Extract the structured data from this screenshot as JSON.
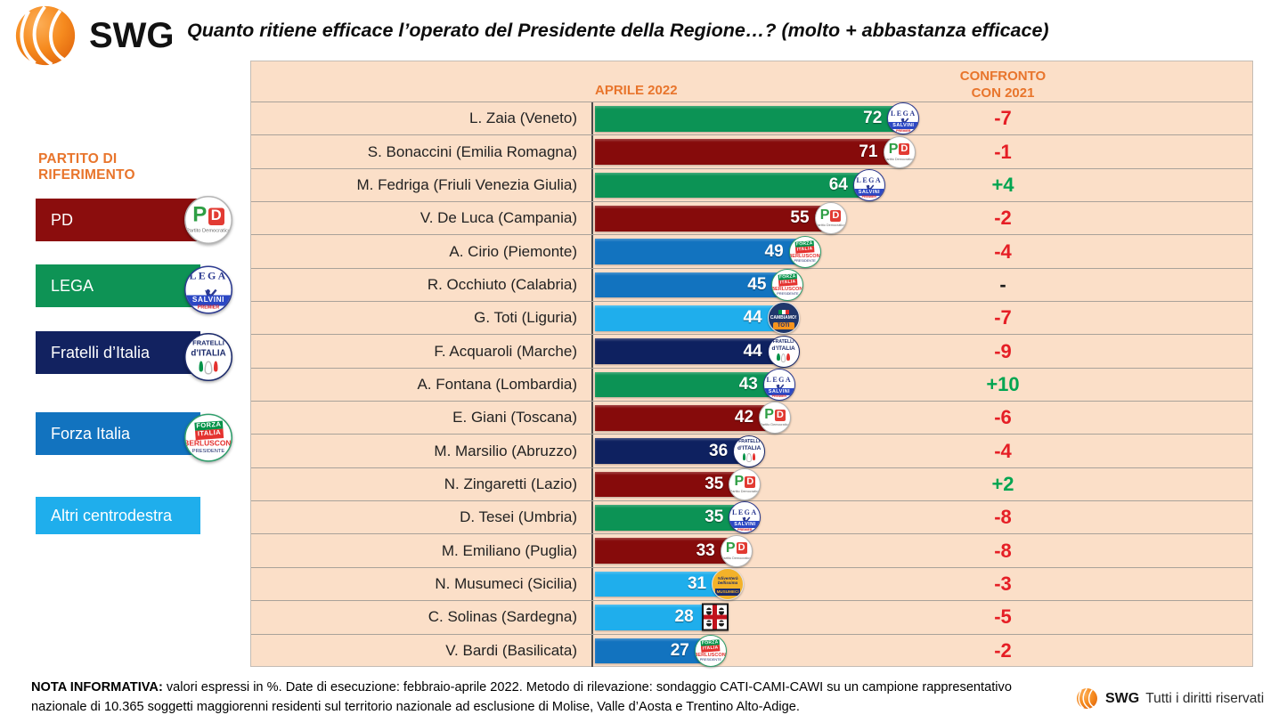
{
  "header": {
    "logo_text": "SWG",
    "title": "Quanto ritiene efficace l’operato del Presidente della Regione…? (molto + abbastanza efficace)"
  },
  "legend": {
    "title": "PARTITO DI RIFERIMENTO",
    "items": [
      {
        "key": "pd",
        "label": "PD",
        "color": "#8B0D0D",
        "logo": "pd"
      },
      {
        "key": "lega",
        "label": "LEGA",
        "color": "#0E9355",
        "logo": "lega"
      },
      {
        "key": "fdi",
        "label": "Fratelli d’Italia",
        "color": "#122260",
        "logo": "fdi"
      },
      {
        "key": "fi",
        "label": "Forza Italia",
        "color": "#1273BF",
        "logo": "fi"
      },
      {
        "key": "altri",
        "label": "Altri centrodestra",
        "color": "#1FAEEC",
        "logo": null,
        "small": true
      }
    ]
  },
  "chart_data": {
    "type": "bar",
    "orientation": "horizontal",
    "title": "Quanto ritiene efficace l’operato del Presidente della Regione…? (molto + abbastanza efficace)",
    "value_header": "APRILE 2022",
    "delta_header": "CONFRONTO\nCON 2021",
    "unit": "%",
    "xlim": [
      0,
      100
    ],
    "rows": [
      {
        "name": "L. Zaia (Veneto)",
        "party": "lega",
        "value": 72,
        "delta": "-7",
        "trend": "neg"
      },
      {
        "name": "S. Bonaccini (Emilia Romagna)",
        "party": "pd",
        "value": 71,
        "delta": "-1",
        "trend": "neg"
      },
      {
        "name": "M. Fedriga (Friuli Venezia Giulia)",
        "party": "lega",
        "value": 64,
        "delta": "+4",
        "trend": "pos"
      },
      {
        "name": "V. De Luca (Campania)",
        "party": "pd",
        "value": 55,
        "delta": "-2",
        "trend": "neg"
      },
      {
        "name": "A. Cirio (Piemonte)",
        "party": "fi",
        "value": 49,
        "delta": "-4",
        "trend": "neg"
      },
      {
        "name": "R. Occhiuto (Calabria)",
        "party": "fi",
        "value": 45,
        "delta": "-",
        "trend": "none"
      },
      {
        "name": "G. Toti (Liguria)",
        "party": "cambiamo",
        "value": 44,
        "delta": "-7",
        "trend": "neg"
      },
      {
        "name": "F. Acquaroli (Marche)",
        "party": "fdi",
        "value": 44,
        "delta": "-9",
        "trend": "neg"
      },
      {
        "name": "A. Fontana (Lombardia)",
        "party": "lega",
        "value": 43,
        "delta": "+10",
        "trend": "pos"
      },
      {
        "name": "E. Giani (Toscana)",
        "party": "pd",
        "value": 42,
        "delta": "-6",
        "trend": "neg"
      },
      {
        "name": "M. Marsilio (Abruzzo)",
        "party": "fdi",
        "value": 36,
        "delta": "-4",
        "trend": "neg"
      },
      {
        "name": "N. Zingaretti (Lazio)",
        "party": "pd",
        "value": 35,
        "delta": "+2",
        "trend": "pos"
      },
      {
        "name": "D. Tesei (Umbria)",
        "party": "lega",
        "value": 35,
        "delta": "-8",
        "trend": "neg"
      },
      {
        "name": "M. Emiliano (Puglia)",
        "party": "pd",
        "value": 33,
        "delta": "-8",
        "trend": "neg"
      },
      {
        "name": "N. Musumeci (Sicilia)",
        "party": "musumeci",
        "value": 31,
        "delta": "-3",
        "trend": "neg"
      },
      {
        "name": "C. Solinas (Sardegna)",
        "party": "sardegna",
        "value": 28,
        "delta": "-5",
        "trend": "neg"
      },
      {
        "name": "V. Bardi (Basilicata)",
        "party": "fi",
        "value": 27,
        "delta": "-2",
        "trend": "neg"
      }
    ],
    "party_colors": {
      "pd": "#860B0B",
      "lega": "#0C9355",
      "fdi": "#0E2160",
      "fi": "#1273BF",
      "cambiamo": "#1FAEEC",
      "musumeci": "#1FAEEC",
      "sardegna": "#1FAEEC"
    },
    "delta_colors": {
      "neg": "#E51E25",
      "pos": "#00A551",
      "none": "#1A1A1A"
    }
  },
  "party_logos": {
    "lega": {
      "top": "LEGA",
      "band": "SALVINI",
      "sub": "PREMIER"
    },
    "pd": {
      "p": "P",
      "d": "D",
      "sub": "Partito Democratico"
    },
    "fdi": {
      "line1": "FRATELLI",
      "line2": "d’ITALIA"
    },
    "fi": {
      "line1": "FORZA",
      "line2": "ITALIA",
      "band": "BERLUSCONI",
      "sub": "PRESIDENTE"
    },
    "cambiamo": {
      "line1": "CAMBIAMO!",
      "band": "TOTI"
    },
    "musumeci": {
      "line1": "#diventerà",
      "line2": "bellissima",
      "band": "MUSUMECI"
    },
    "sardegna": {
      "name": "bandiera dei quattro mori"
    }
  },
  "footer": {
    "note_bold": "NOTA INFORMATIVA:",
    "note_text": " valori espressi in %. Date di esecuzione: febbraio-aprile 2022. Metodo di rilevazione: sondaggio CATI-CAMI-CAWI su un campione rappresentativo nazionale di 10.365 soggetti maggiorenni residenti sul territorio nazionale ad esclusione di Molise, Valle d’Aosta e Trentino Alto-Adige.",
    "brand": "SWG",
    "rights": "Tutti i diritti riservati"
  },
  "colors": {
    "accent_orange": "#E8752C",
    "panel_background": "#FBDFC8"
  }
}
